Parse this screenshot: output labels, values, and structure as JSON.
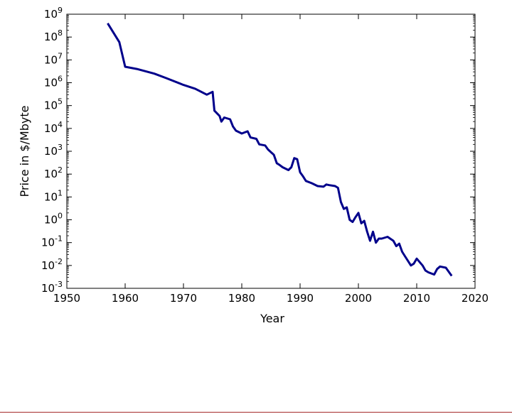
{
  "chart_data": {
    "type": "line",
    "title": "",
    "xlabel": "Year",
    "ylabel": "Price in $/Mbyte",
    "xlim": [
      1950,
      2020
    ],
    "ylim": [
      0.001,
      1000000000
    ],
    "yscale": "log",
    "grid": false,
    "legend": "none",
    "x_ticks": [
      1950,
      1960,
      1970,
      1980,
      1990,
      2000,
      2010,
      2020
    ],
    "y_ticks": [
      {
        "value": 0.001,
        "base": "10",
        "exp": "-3"
      },
      {
        "value": 0.01,
        "base": "10",
        "exp": "-2"
      },
      {
        "value": 0.1,
        "base": "10",
        "exp": "-1"
      },
      {
        "value": 1,
        "base": "10",
        "exp": "0"
      },
      {
        "value": 10,
        "base": "10",
        "exp": "1"
      },
      {
        "value": 100,
        "base": "10",
        "exp": "2"
      },
      {
        "value": 1000,
        "base": "10",
        "exp": "3"
      },
      {
        "value": 10000,
        "base": "10",
        "exp": "4"
      },
      {
        "value": 100000,
        "base": "10",
        "exp": "5"
      },
      {
        "value": 1000000,
        "base": "10",
        "exp": "6"
      },
      {
        "value": 10000000,
        "base": "10",
        "exp": "7"
      },
      {
        "value": 100000000,
        "base": "10",
        "exp": "8"
      },
      {
        "value": 1000000000,
        "base": "10",
        "exp": "9"
      }
    ],
    "series": [
      {
        "color": "#00008b",
        "points": [
          [
            1957,
            400000000
          ],
          [
            1959,
            60000000
          ],
          [
            1960,
            5000000
          ],
          [
            1962,
            4000000
          ],
          [
            1965,
            2500000
          ],
          [
            1967,
            1600000
          ],
          [
            1970,
            800000
          ],
          [
            1972,
            550000
          ],
          [
            1974,
            300000
          ],
          [
            1975,
            400000
          ],
          [
            1975.3,
            60000
          ],
          [
            1976.2,
            35000
          ],
          [
            1976.5,
            20000
          ],
          [
            1977,
            30000
          ],
          [
            1978,
            25000
          ],
          [
            1978.5,
            12000
          ],
          [
            1979,
            8000
          ],
          [
            1980,
            6000
          ],
          [
            1981,
            7500
          ],
          [
            1981.5,
            4000
          ],
          [
            1982.5,
            3500
          ],
          [
            1983,
            2000
          ],
          [
            1984,
            1800
          ],
          [
            1984.5,
            1200
          ],
          [
            1985.5,
            700
          ],
          [
            1986,
            300
          ],
          [
            1986.5,
            250
          ],
          [
            1987,
            200
          ],
          [
            1988,
            150
          ],
          [
            1988.5,
            200
          ],
          [
            1989,
            500
          ],
          [
            1989.5,
            450
          ],
          [
            1990,
            120
          ],
          [
            1990.5,
            80
          ],
          [
            1991,
            50
          ],
          [
            1992,
            40
          ],
          [
            1993,
            30
          ],
          [
            1994,
            28
          ],
          [
            1994.5,
            35
          ],
          [
            1995,
            33
          ],
          [
            1996,
            30
          ],
          [
            1996.5,
            25
          ],
          [
            1997,
            6
          ],
          [
            1997.5,
            3
          ],
          [
            1998,
            3.5
          ],
          [
            1998.5,
            1
          ],
          [
            1999,
            0.8
          ],
          [
            1999.5,
            1.3
          ],
          [
            2000,
            2
          ],
          [
            2000.5,
            0.7
          ],
          [
            2001,
            0.9
          ],
          [
            2001.5,
            0.3
          ],
          [
            2002,
            0.12
          ],
          [
            2002.5,
            0.3
          ],
          [
            2003,
            0.1
          ],
          [
            2003.5,
            0.15
          ],
          [
            2004,
            0.15
          ],
          [
            2005,
            0.18
          ],
          [
            2006,
            0.12
          ],
          [
            2006.5,
            0.07
          ],
          [
            2007,
            0.09
          ],
          [
            2007.5,
            0.04
          ],
          [
            2008,
            0.025
          ],
          [
            2009,
            0.01
          ],
          [
            2009.5,
            0.012
          ],
          [
            2010,
            0.02
          ],
          [
            2011,
            0.01
          ],
          [
            2011.5,
            0.006
          ],
          [
            2012,
            0.005
          ],
          [
            2013,
            0.004
          ],
          [
            2013.5,
            0.007
          ],
          [
            2014,
            0.009
          ],
          [
            2015,
            0.008
          ],
          [
            2016,
            0.0035
          ]
        ]
      }
    ]
  }
}
